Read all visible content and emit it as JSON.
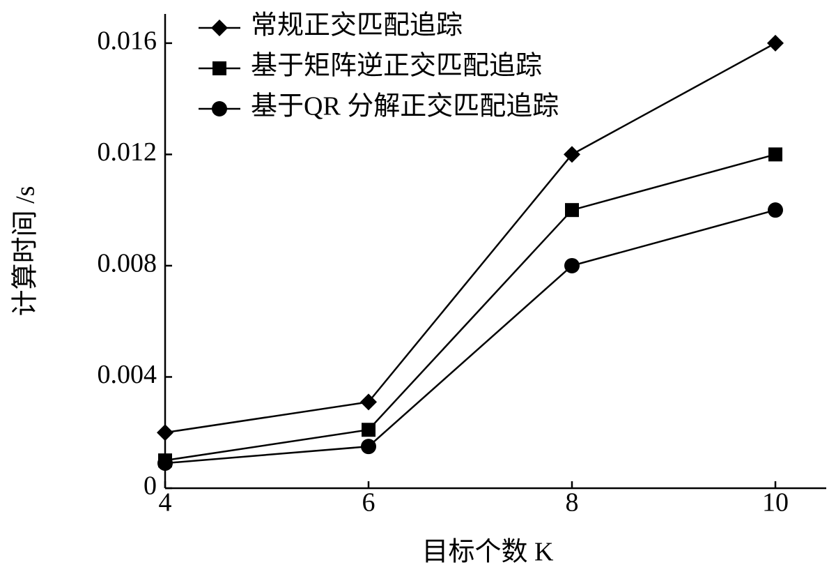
{
  "chart_data": {
    "type": "line",
    "x_label": "目标个数 K",
    "y_label": "计算时间 /s",
    "x": [
      4,
      6,
      8,
      10
    ],
    "series": [
      {
        "name": "常规正交匹配追踪",
        "color": "#000000",
        "marker": "diamond",
        "values": [
          0.002,
          0.0031,
          0.012,
          0.016
        ]
      },
      {
        "name": "基于矩阵逆正交匹配追踪",
        "color": "#000000",
        "marker": "square",
        "values": [
          0.001,
          0.0021,
          0.01,
          0.012
        ]
      },
      {
        "name": "基于QR 分解正交匹配追踪",
        "color": "#000000",
        "marker": "circle",
        "values": [
          0.0009,
          0.0015,
          0.008,
          0.01
        ]
      }
    ],
    "xlim": [
      4,
      10.5
    ],
    "xticks": [
      4,
      6,
      8,
      10
    ],
    "ylim": [
      0,
      0.017
    ],
    "yticks": [
      0,
      0.004,
      0.008,
      0.012,
      0.016
    ],
    "legend": "upper-left"
  }
}
